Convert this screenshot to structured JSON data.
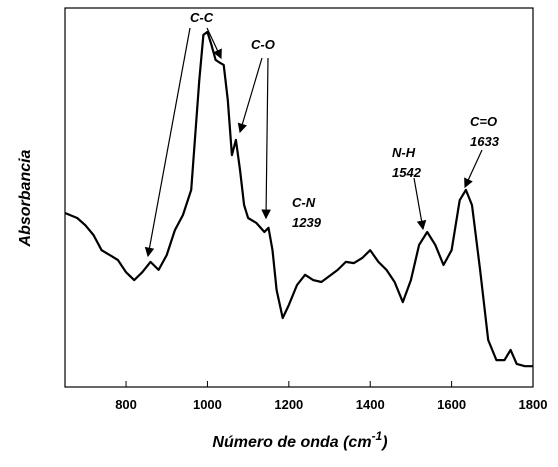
{
  "chart_data": {
    "type": "line",
    "ylabel": "Absorbancia",
    "xlabel": {
      "text": "Número de onda (cm",
      "superscript": "-1",
      "suffix": ")"
    },
    "xlim": [
      650,
      1800
    ],
    "xticks": [
      800,
      1000,
      1200,
      1400,
      1600,
      1800
    ],
    "ylim": [
      0,
      100
    ],
    "series": [
      {
        "color": "#000000",
        "x": [
          650,
          680,
          700,
          720,
          740,
          760,
          780,
          800,
          820,
          840,
          860,
          880,
          900,
          920,
          940,
          960,
          980,
          990,
          1000,
          1010,
          1020,
          1030,
          1040,
          1050,
          1060,
          1070,
          1080,
          1090,
          1100,
          1120,
          1140,
          1150,
          1160,
          1170,
          1185,
          1200,
          1220,
          1240,
          1260,
          1280,
          1300,
          1320,
          1340,
          1360,
          1380,
          1400,
          1420,
          1440,
          1460,
          1480,
          1500,
          1520,
          1540,
          1560,
          1580,
          1600,
          1620,
          1635,
          1650,
          1670,
          1690,
          1710,
          1730,
          1745,
          1760,
          1780,
          1800
        ],
        "values": [
          45.9,
          44.6,
          42.7,
          40.1,
          36.1,
          34.8,
          33.5,
          30.3,
          28.2,
          30.3,
          33.0,
          30.9,
          34.8,
          41.4,
          45.4,
          52.0,
          81.0,
          92.9,
          93.7,
          90.2,
          86.3,
          85.6,
          85.0,
          75.7,
          61.2,
          65.2,
          57.3,
          48.0,
          44.6,
          43.3,
          40.9,
          42.0,
          36.1,
          25.6,
          18.2,
          21.6,
          26.9,
          29.6,
          28.2,
          27.7,
          29.3,
          30.9,
          33.0,
          32.7,
          34.0,
          36.1,
          33.0,
          30.9,
          27.7,
          22.4,
          28.2,
          37.5,
          40.9,
          37.5,
          32.2,
          36.1,
          49.3,
          52.0,
          48.0,
          30.9,
          12.4,
          7.1,
          7.1,
          9.8,
          6.1,
          5.5,
          5.5
        ]
      }
    ],
    "annotations": [
      [
        "C-C"
      ],
      [
        "C-O"
      ],
      [
        "C-N",
        "1239"
      ],
      [
        "N-H",
        "1542"
      ],
      [
        "C=O",
        "1633"
      ]
    ]
  }
}
